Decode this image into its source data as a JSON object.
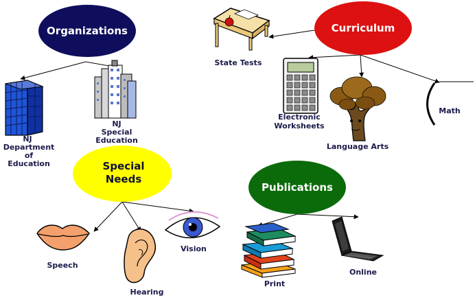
{
  "nodes": {
    "organizations": "Organizations",
    "curriculum": "Curriculum",
    "special_needs": [
      "Special",
      "Needs"
    ],
    "publications": "Publications"
  },
  "leaves": {
    "state_tests": "State Tests",
    "electronic_worksheets": [
      "Electronic",
      "Worksheets"
    ],
    "language_arts": "Language Arts",
    "math": "Math",
    "nj_doe": [
      "NJ",
      "Department",
      "of",
      "Education"
    ],
    "nj_special_ed": [
      "NJ",
      "Special",
      "Education"
    ],
    "speech": "Speech",
    "hearing": "Hearing",
    "vision": "Vision",
    "print": "Print",
    "online": "Online"
  },
  "colors": {
    "organizations": "#0e0e5c",
    "curriculum": "#dd1111",
    "special_needs": "#ffff00",
    "publications": "#0b6b0b",
    "label_text": "#1a1a4a"
  },
  "icons": {
    "state_tests": "desk-apple-icon",
    "electronic_worksheets": "calculator-icon",
    "language_arts": "tree-icon",
    "math": "math-paren-icon",
    "nj_doe": "office-building-icon",
    "nj_special_ed": "city-buildings-icon",
    "speech": "lips-icon",
    "hearing": "ear-icon",
    "vision": "eye-icon",
    "print": "book-stack-icon",
    "online": "laptop-icon"
  }
}
